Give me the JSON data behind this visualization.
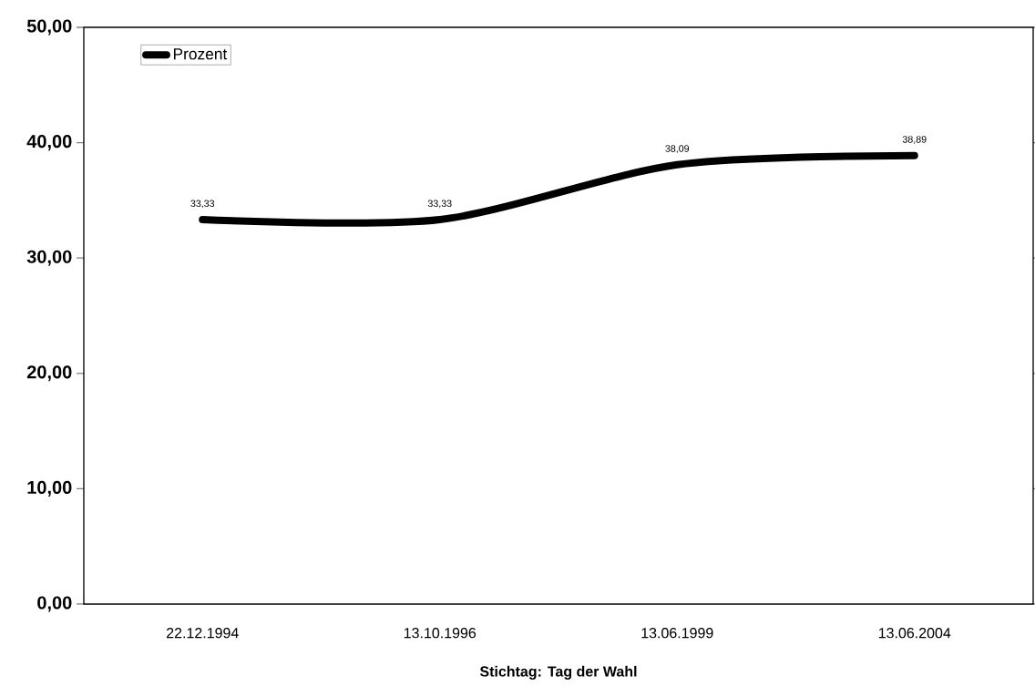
{
  "chart_data": {
    "type": "line",
    "xlabel": "Stichtag: Tag der Wahl",
    "categories": [
      "22.12.1994",
      "13.10.1996",
      "13.06.1999",
      "13.06.2004"
    ],
    "series": [
      {
        "name": "Prozent",
        "color": "#000000",
        "values": [
          33.33,
          33.33,
          38.09,
          38.89
        ],
        "value_labels": [
          "33,33",
          "33,33",
          "38,09",
          "38,89"
        ]
      }
    ],
    "ylim": [
      0,
      50
    ],
    "yticks": [
      {
        "value": 0,
        "label": "0,00"
      },
      {
        "value": 10,
        "label": "10,00"
      },
      {
        "value": 20,
        "label": "20,00"
      },
      {
        "value": 30,
        "label": "30,00"
      },
      {
        "value": 40,
        "label": "40,00"
      },
      {
        "value": 50,
        "label": "50,00"
      }
    ],
    "legend": "top left",
    "grid": false,
    "marker": "none",
    "line_style": "solid"
  }
}
